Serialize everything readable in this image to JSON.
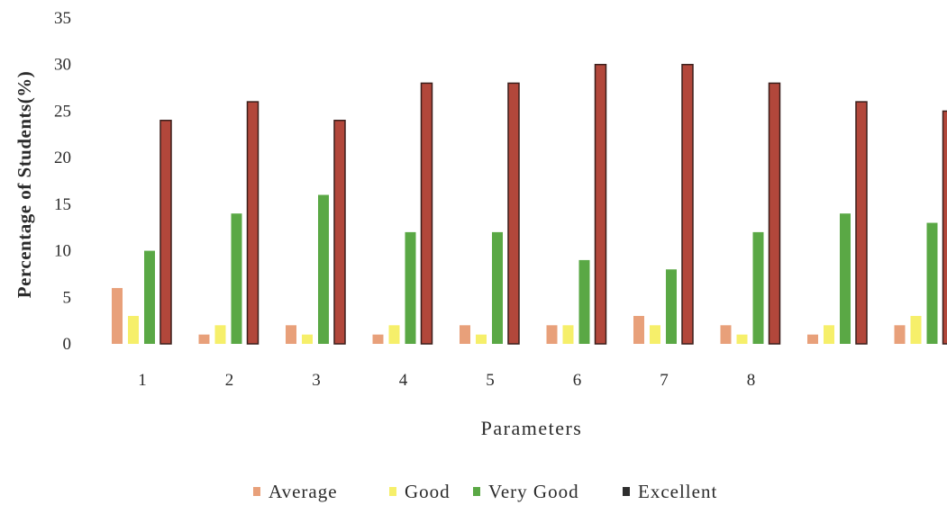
{
  "chart_data": {
    "type": "bar",
    "title": "",
    "xlabel": "Parameters",
    "ylabel": "Percentage of Students(%)",
    "ylim": [
      0,
      35
    ],
    "yticks": [
      "0",
      "5",
      "10",
      "15",
      "20",
      "25",
      "30",
      "35"
    ],
    "categories": [
      "1",
      "2",
      "3",
      "4",
      "5",
      "6",
      "7",
      "8",
      "",
      ""
    ],
    "legend_position": "bottom",
    "grid": false,
    "series": [
      {
        "name": "Average",
        "color": "#e8a07a",
        "values": [
          6,
          1,
          2,
          1,
          2,
          2,
          3,
          2,
          1,
          2
        ]
      },
      {
        "name": "Good",
        "color": "#f6ef6a",
        "values": [
          3,
          2,
          1,
          2,
          1,
          2,
          2,
          1,
          2,
          3
        ]
      },
      {
        "name": "Very Good",
        "color": "#5aa845",
        "values": [
          10,
          14,
          16,
          12,
          12,
          9,
          8,
          12,
          14,
          13
        ]
      },
      {
        "name": "Excellent",
        "color": "#b2473b",
        "values": [
          24,
          26,
          24,
          28,
          28,
          30,
          30,
          28,
          26,
          25
        ]
      }
    ]
  }
}
